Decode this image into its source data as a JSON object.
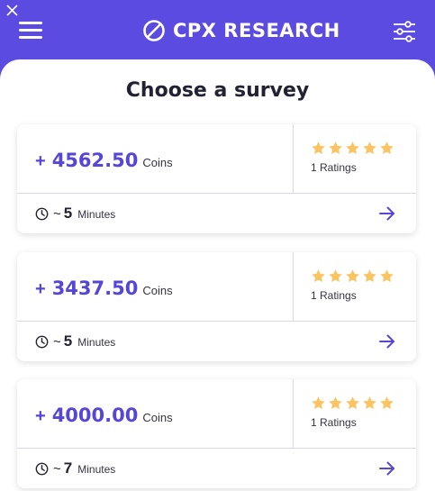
{
  "header": {
    "brand": "CPX RESEARCH",
    "brand_color": "#5b4be1"
  },
  "page_title": "Choose a survey",
  "surveys": [
    {
      "plus": "+",
      "amount": "4562.50",
      "coins_label": "Coins",
      "stars": 5,
      "ratings": "1 Ratings",
      "tilde": "~",
      "minutes": "5",
      "minutes_label": "Minutes"
    },
    {
      "plus": "+",
      "amount": "3437.50",
      "coins_label": "Coins",
      "stars": 5,
      "ratings": "1 Ratings",
      "tilde": "~",
      "minutes": "5",
      "minutes_label": "Minutes"
    },
    {
      "plus": "+",
      "amount": "4000.00",
      "coins_label": "Coins",
      "stars": 5,
      "ratings": "1 Ratings",
      "tilde": "~",
      "minutes": "7",
      "minutes_label": "Minutes"
    }
  ],
  "colors": {
    "accent": "#5546d8",
    "star": "#fbc463"
  },
  "icons": [
    "close-icon",
    "menu-icon",
    "logo-icon",
    "filter-icon",
    "star-icon",
    "clock-icon",
    "arrow-right-icon"
  ]
}
